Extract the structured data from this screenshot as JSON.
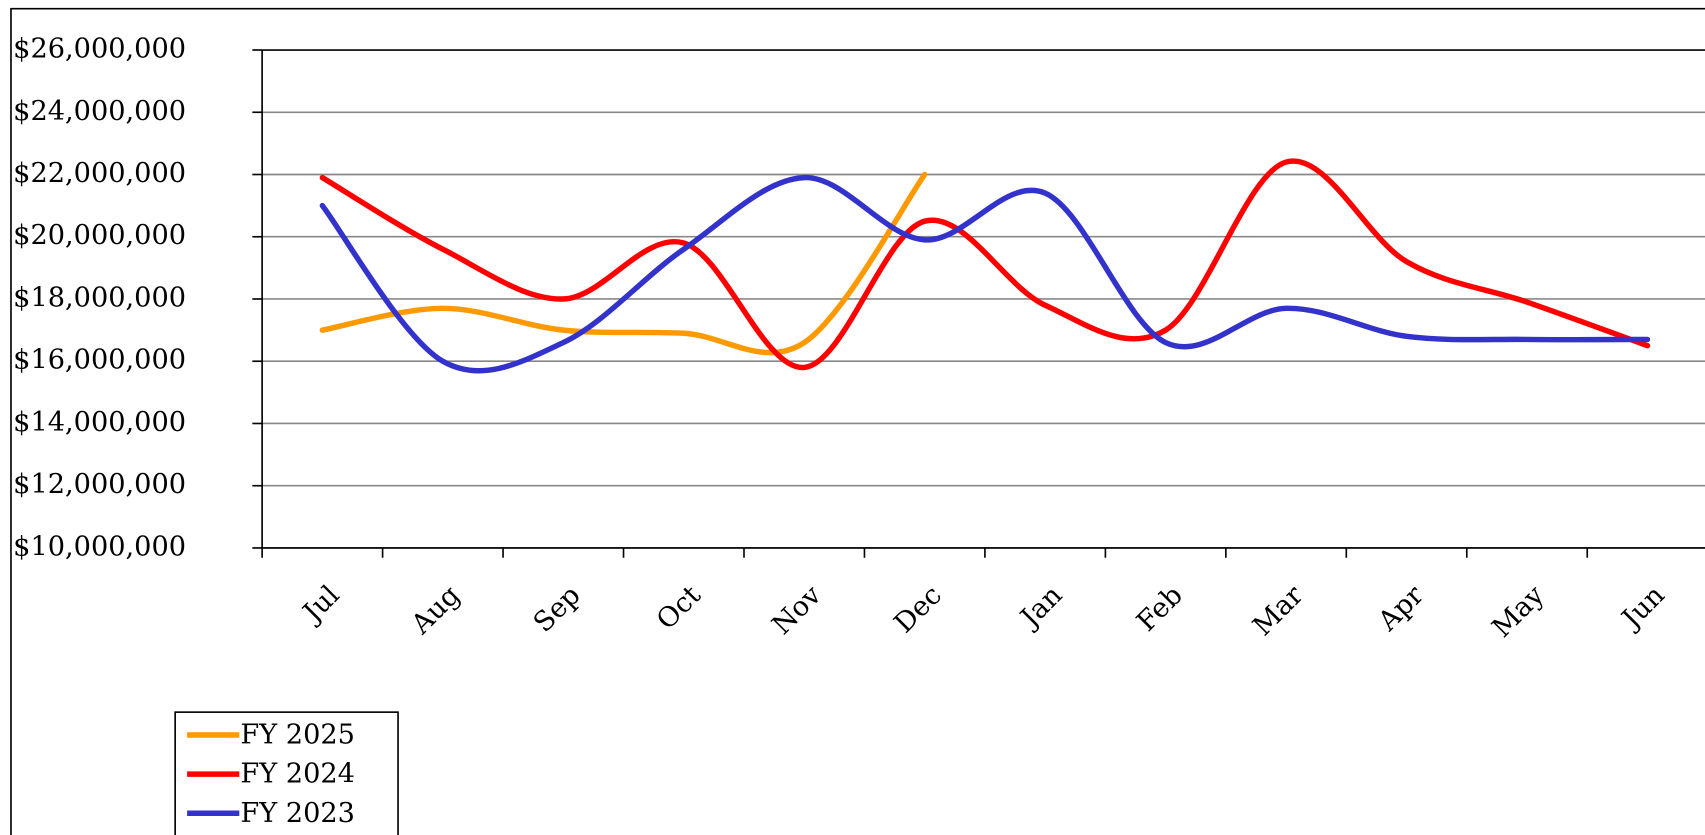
{
  "chart_data": {
    "type": "line",
    "categories": [
      "Jul",
      "Aug",
      "Sep",
      "Oct",
      "Nov",
      "Dec",
      "Jan",
      "Feb",
      "Mar",
      "Apr",
      "May",
      "Jun"
    ],
    "series": [
      {
        "name": "FY 2025",
        "color": "#ff9900",
        "values": [
          17000000,
          17700000,
          17000000,
          16900000,
          16600000,
          22000000,
          null,
          null,
          null,
          null,
          null,
          null
        ]
      },
      {
        "name": "FY 2024",
        "color": "#ff0000",
        "values": [
          21900000,
          19600000,
          18000000,
          19800000,
          15800000,
          20500000,
          17800000,
          17000000,
          22400000,
          19200000,
          17900000,
          16500000
        ]
      },
      {
        "name": "FY 2023",
        "color": "#3333cc",
        "values": [
          21000000,
          16000000,
          16600000,
          19600000,
          21900000,
          19900000,
          21400000,
          16600000,
          17700000,
          16800000,
          16700000,
          16700000
        ]
      }
    ],
    "ylim": [
      10000000,
      26000000
    ],
    "yticks": [
      {
        "value": 10000000,
        "label": "$10,000,000"
      },
      {
        "value": 12000000,
        "label": "$12,000,000"
      },
      {
        "value": 14000000,
        "label": "$14,000,000"
      },
      {
        "value": 16000000,
        "label": "$16,000,000"
      },
      {
        "value": 18000000,
        "label": "$18,000,000"
      },
      {
        "value": 20000000,
        "label": "$20,000,000"
      },
      {
        "value": 22000000,
        "label": "$22,000,000"
      },
      {
        "value": 24000000,
        "label": "$24,000,000"
      },
      {
        "value": 26000000,
        "label": "$26,000,000"
      }
    ],
    "grid": true,
    "smooth": true,
    "legend": "bottom-left"
  }
}
